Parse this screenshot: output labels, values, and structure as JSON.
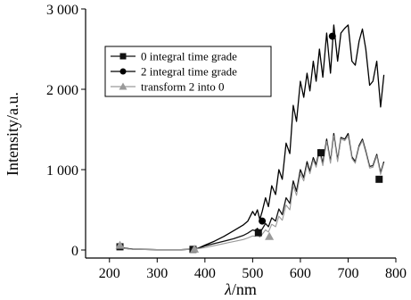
{
  "chart_data": {
    "type": "line",
    "title": "",
    "xlabel_italic": "λ",
    "xlabel_unit": "/nm",
    "ylabel": "Intensity/a.u.",
    "xlim": [
      150,
      800
    ],
    "ylim": [
      -100,
      3000
    ],
    "x_ticks": [
      200,
      300,
      400,
      500,
      600,
      700,
      800
    ],
    "x_tick_labels": [
      "200",
      "300",
      "400",
      "500",
      "600",
      "700",
      "800"
    ],
    "y_ticks": [
      0,
      1000,
      2000,
      3000
    ],
    "y_tick_labels": [
      "0",
      "1 000",
      "2 000",
      "3 000"
    ],
    "grid": false,
    "legend_position": "upper-left",
    "series": [
      {
        "name": "0 integral time grade",
        "marker": "square",
        "color": "#111111",
        "x": [
          220,
          250,
          300,
          350,
          375,
          385,
          400,
          420,
          440,
          460,
          480,
          490,
          500,
          505,
          510,
          515,
          520,
          527,
          533,
          540,
          548,
          555,
          562,
          570,
          578,
          585,
          592,
          600,
          607,
          614,
          620,
          627,
          633,
          640,
          647,
          655,
          663,
          670,
          678,
          685,
          693,
          700,
          708,
          715,
          723,
          730,
          737,
          745,
          752,
          760,
          768,
          775
        ],
        "y": [
          30,
          10,
          5,
          5,
          10,
          20,
          50,
          80,
          110,
          140,
          180,
          210,
          250,
          240,
          270,
          220,
          260,
          330,
          290,
          400,
          360,
          510,
          440,
          650,
          580,
          860,
          730,
          1000,
          900,
          1100,
          980,
          1150,
          1060,
          1250,
          1080,
          1380,
          1100,
          1450,
          1120,
          1400,
          1380,
          1450,
          1160,
          1100,
          1300,
          1380,
          1230,
          1040,
          1050,
          1190,
          960,
          1100
        ],
        "marker_x": [
          222,
          375,
          512,
          643,
          765
        ],
        "marker_y": [
          40,
          8,
          215,
          1210,
          880
        ]
      },
      {
        "name": "2 integral time grade",
        "marker": "circle",
        "color": "#000000",
        "x": [
          220,
          250,
          300,
          350,
          375,
          385,
          400,
          420,
          440,
          460,
          480,
          490,
          500,
          505,
          510,
          515,
          520,
          527,
          533,
          540,
          548,
          555,
          562,
          570,
          578,
          585,
          592,
          600,
          607,
          614,
          620,
          627,
          633,
          640,
          647,
          655,
          663,
          670,
          678,
          685,
          693,
          700,
          708,
          715,
          723,
          730,
          737,
          745,
          752,
          760,
          768,
          775
        ],
        "y": [
          30,
          10,
          5,
          5,
          10,
          20,
          60,
          110,
          170,
          240,
          310,
          360,
          480,
          430,
          500,
          380,
          480,
          650,
          540,
          800,
          690,
          1000,
          880,
          1330,
          1200,
          1800,
          1600,
          2100,
          1900,
          2200,
          1980,
          2350,
          2100,
          2500,
          2150,
          2700,
          2200,
          2800,
          2350,
          2700,
          2760,
          2800,
          2350,
          2300,
          2600,
          2750,
          2500,
          2050,
          2100,
          2350,
          1780,
          2180
        ],
        "marker_x": [
          520,
          667
        ],
        "marker_y": [
          360,
          2660
        ]
      },
      {
        "name": "transform 2 into 0",
        "marker": "triangle",
        "color": "#9a9a9a",
        "x": [
          220,
          250,
          300,
          350,
          375,
          385,
          400,
          420,
          440,
          460,
          480,
          490,
          500,
          505,
          510,
          515,
          520,
          527,
          533,
          540,
          548,
          555,
          562,
          570,
          578,
          585,
          592,
          600,
          607,
          614,
          620,
          627,
          633,
          640,
          647,
          655,
          663,
          670,
          678,
          685,
          693,
          700,
          708,
          715,
          723,
          730,
          737,
          745,
          752,
          760,
          768,
          775
        ],
        "y": [
          25,
          8,
          4,
          4,
          8,
          15,
          30,
          55,
          80,
          105,
          130,
          150,
          175,
          170,
          195,
          160,
          195,
          250,
          225,
          320,
          290,
          420,
          370,
          560,
          500,
          800,
          680,
          950,
          860,
          1060,
          950,
          1120,
          1030,
          1220,
          1050,
          1350,
          1080,
          1420,
          1100,
          1380,
          1360,
          1420,
          1140,
          1080,
          1280,
          1360,
          1210,
          1020,
          1030,
          1170,
          940,
          1080
        ],
        "marker_x": [
          222,
          378,
          535
        ],
        "marker_y": [
          60,
          12,
          170
        ]
      }
    ]
  }
}
